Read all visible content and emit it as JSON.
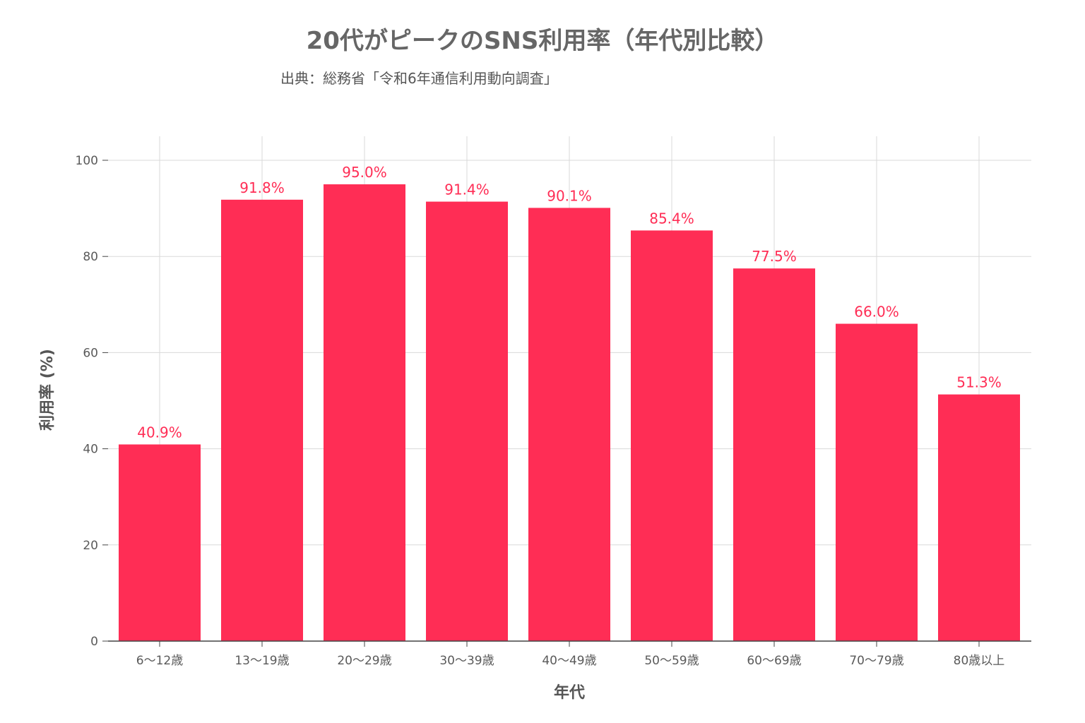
{
  "chart_data": {
    "type": "bar",
    "title": "20代がピークのSNS利用率（年代別比較）",
    "subtitle": "出典：総務省「令和6年通信利用動向調査」",
    "xlabel": "年代",
    "ylabel": "利用率 (%)",
    "categories": [
      "6〜12歳",
      "13〜19歳",
      "20〜29歳",
      "30〜39歳",
      "40〜49歳",
      "50〜59歳",
      "60〜69歳",
      "70〜79歳",
      "80歳以上"
    ],
    "values": [
      40.9,
      91.8,
      95.0,
      91.4,
      90.1,
      85.4,
      77.5,
      66.0,
      51.3
    ],
    "data_labels": [
      "40.9%",
      "91.8%",
      "95.0%",
      "91.4%",
      "90.1%",
      "85.4%",
      "77.5%",
      "66.0%",
      "51.3%"
    ],
    "ylim": [
      0,
      100
    ],
    "yticks": [
      "0",
      "20",
      "40",
      "60",
      "80",
      "100"
    ],
    "grid": true,
    "bar_color": "#ff2d55",
    "label_color": "#ff2d55"
  }
}
